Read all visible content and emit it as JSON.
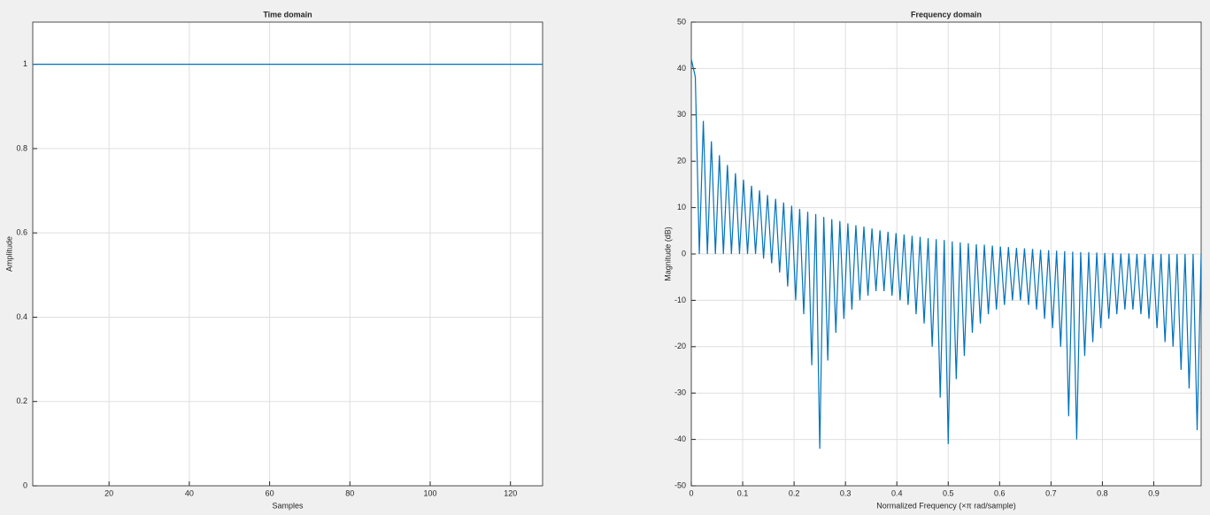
{
  "chart_data": [
    {
      "type": "line",
      "title": "Time domain",
      "x_label": "Samples",
      "y_label": "Amplitude",
      "x": [
        1,
        128
      ],
      "values": [
        1,
        1
      ],
      "color": "#0072bd",
      "xlim": [
        1,
        128
      ],
      "xticks": [
        20,
        40,
        60,
        80,
        100,
        120
      ],
      "ylim": [
        0,
        1.1
      ],
      "yticks": [
        0,
        0.2,
        0.4,
        0.6,
        0.8,
        1
      ],
      "grid": true
    },
    {
      "type": "line",
      "title": "Frequency domain",
      "x_label": "Normalized Frequency  (×π rad/sample)",
      "y_label": "Magnitude (dB)",
      "x": [
        0,
        0.0078,
        0.0156,
        0.0234,
        0.0313,
        0.0391,
        0.0469,
        0.0547,
        0.0625,
        0.0703,
        0.0781,
        0.0859,
        0.0938,
        0.1016,
        0.1094,
        0.1172,
        0.125,
        0.1328,
        0.1406,
        0.1484,
        0.1563,
        0.1641,
        0.1719,
        0.1797,
        0.1875,
        0.1953,
        0.2031,
        0.2109,
        0.2188,
        0.2266,
        0.2344,
        0.2422,
        0.25,
        0.2578,
        0.2656,
        0.2734,
        0.2813,
        0.2891,
        0.2969,
        0.3047,
        0.3125,
        0.3203,
        0.3281,
        0.3359,
        0.3438,
        0.3516,
        0.3594,
        0.3672,
        0.375,
        0.3828,
        0.3906,
        0.3984,
        0.4063,
        0.4141,
        0.4219,
        0.4297,
        0.4375,
        0.4453,
        0.4531,
        0.4609,
        0.4688,
        0.4766,
        0.4844,
        0.4922,
        0.5,
        0.5078,
        0.5156,
        0.5234,
        0.5313,
        0.5391,
        0.5469,
        0.5547,
        0.5625,
        0.5703,
        0.5781,
        0.5859,
        0.5938,
        0.6016,
        0.6094,
        0.6172,
        0.625,
        0.6328,
        0.6406,
        0.6484,
        0.6563,
        0.6641,
        0.6719,
        0.6797,
        0.6875,
        0.6953,
        0.7031,
        0.7109,
        0.7188,
        0.7266,
        0.7344,
        0.7422,
        0.75,
        0.7578,
        0.7656,
        0.7734,
        0.7813,
        0.7891,
        0.7969,
        0.8047,
        0.8125,
        0.8203,
        0.8281,
        0.8359,
        0.8438,
        0.8516,
        0.8594,
        0.8672,
        0.875,
        0.8828,
        0.8906,
        0.8984,
        0.9063,
        0.9141,
        0.9219,
        0.9297,
        0.9375,
        0.9453,
        0.9531,
        0.9609,
        0.9688,
        0.9766,
        0.9844,
        0.9922
      ],
      "values": [
        42,
        38.2,
        0,
        28.7,
        0,
        24.3,
        0,
        21.3,
        0,
        19.2,
        0,
        17.4,
        0,
        16,
        0,
        14.7,
        0,
        13.7,
        -1,
        12.7,
        -2,
        11.9,
        -4,
        11.1,
        -7,
        10.4,
        -10,
        9.7,
        -13,
        9.1,
        -24,
        8.6,
        -42,
        8,
        -23,
        7.5,
        -17,
        7.1,
        -14,
        6.6,
        -12,
        6.2,
        -10,
        5.9,
        -9,
        5.5,
        -8,
        5.1,
        -8,
        4.8,
        -9,
        4.5,
        -10,
        4.2,
        -11,
        3.9,
        -13,
        3.7,
        -15,
        3.4,
        -20,
        3.2,
        -31,
        3,
        -41,
        2.7,
        -27,
        2.5,
        -22,
        2.3,
        -17,
        2.1,
        -15,
        2,
        -13,
        1.8,
        -12,
        1.6,
        -11,
        1.5,
        -10,
        1.3,
        -10,
        1.2,
        -11,
        1.1,
        -12,
        0.9,
        -14,
        0.8,
        -16,
        0.7,
        -20,
        0.6,
        -35,
        0.5,
        -40,
        0.4,
        -22,
        0.4,
        -19,
        0.3,
        -16,
        0.2,
        -14,
        0.2,
        -13,
        0.1,
        -12,
        0.1,
        -12,
        0,
        -13,
        0,
        -14,
        0,
        -16,
        0,
        -19,
        0,
        -20,
        0,
        -25,
        0,
        -29,
        0,
        -38,
        0
      ],
      "color": "#0072bd",
      "xlim": [
        0,
        0.9922
      ],
      "xticks": [
        0,
        0.1,
        0.2,
        0.3,
        0.4,
        0.5,
        0.6,
        0.7,
        0.8,
        0.9
      ],
      "ylim": [
        -50,
        50
      ],
      "yticks": [
        -50,
        -40,
        -30,
        -20,
        -10,
        0,
        10,
        20,
        30,
        40,
        50
      ],
      "grid": true
    }
  ]
}
